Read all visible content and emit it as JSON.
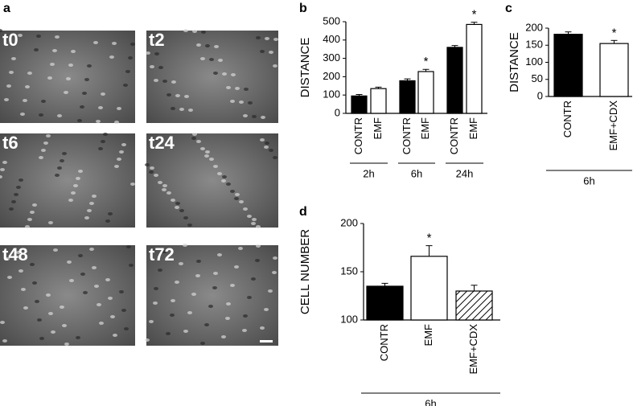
{
  "image_panel": {
    "label": "a",
    "frames": [
      "t0",
      "t2",
      "t6",
      "t24",
      "t48",
      "t72"
    ]
  },
  "chart_data": [
    {
      "type": "bar",
      "panel": "b",
      "y_label": "DISTANCE",
      "categories": [
        "CONTR",
        "EMF",
        "CONTR",
        "EMF",
        "CONTR",
        "EMF"
      ],
      "group_labels": [
        "2h",
        "2h",
        "6h",
        "6h",
        "24h",
        "24h"
      ],
      "values": [
        95,
        135,
        178,
        228,
        360,
        485
      ],
      "errors": [
        8,
        8,
        10,
        12,
        10,
        12
      ],
      "fills": [
        "black",
        "white",
        "black",
        "white",
        "black",
        "white"
      ],
      "significance": [
        null,
        null,
        null,
        "*",
        null,
        "*"
      ],
      "ylim": [
        0,
        500
      ],
      "yticks": [
        0,
        100,
        200,
        300,
        400,
        500
      ]
    },
    {
      "type": "bar",
      "panel": "c",
      "y_label": "DISTANCE",
      "categories": [
        "CONTR",
        "EMF+CDX"
      ],
      "group_labels": [
        "6h",
        "6h"
      ],
      "values": [
        182,
        155
      ],
      "errors": [
        7,
        9
      ],
      "fills": [
        "black",
        "white"
      ],
      "significance": [
        null,
        "*"
      ],
      "ylim": [
        0,
        200
      ],
      "yticks": [
        0,
        50,
        100,
        150,
        200
      ]
    },
    {
      "type": "bar",
      "panel": "d",
      "y_label": "CELL NUMBER",
      "categories": [
        "CONTR",
        "EMF",
        "EMF+CDX"
      ],
      "group_labels": [
        "6h",
        "6h",
        "6h"
      ],
      "values": [
        135,
        166,
        130
      ],
      "errors": [
        3,
        11,
        6
      ],
      "fills": [
        "black",
        "white",
        "hatched"
      ],
      "significance": [
        null,
        "*",
        null
      ],
      "ylim": [
        100,
        200
      ],
      "yticks": [
        100,
        150,
        200
      ]
    }
  ]
}
